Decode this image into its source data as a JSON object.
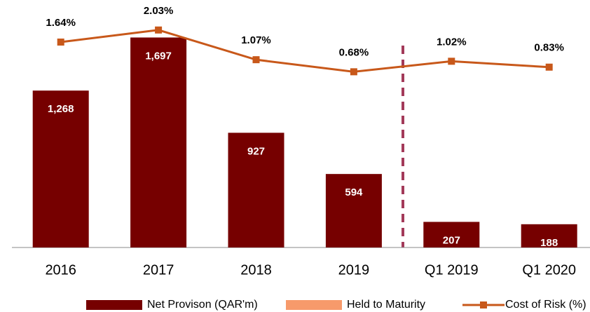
{
  "chart_data": {
    "type": "bar+line",
    "categories": [
      "2016",
      "2017",
      "2018",
      "2019",
      "Q1 2019",
      "Q1 2020"
    ],
    "series": [
      {
        "name": "Net Provison (QAR'm)",
        "color": "#760000",
        "type": "bar",
        "values": [
          1268,
          1697,
          927,
          594,
          207,
          188
        ],
        "value_labels": [
          "1,268",
          "1,697",
          "927",
          "594",
          "207",
          "188"
        ]
      },
      {
        "name": "Held to Maturity",
        "color": "#f79a6b",
        "type": "bar",
        "values": [
          null,
          null,
          null,
          null,
          null,
          null
        ]
      },
      {
        "name": "Cost of Risk (%)",
        "color": "#c8581a",
        "type": "line",
        "axis": "y2",
        "values": [
          1.64,
          2.03,
          1.07,
          0.68,
          1.02,
          0.83
        ],
        "value_labels": [
          "1.64%",
          "2.03%",
          "1.07%",
          "0.68%",
          "1.02%",
          "0.83%"
        ]
      }
    ],
    "ylim": [
      0,
      2000
    ],
    "y2lim": [
      -5,
      3
    ]
  }
}
